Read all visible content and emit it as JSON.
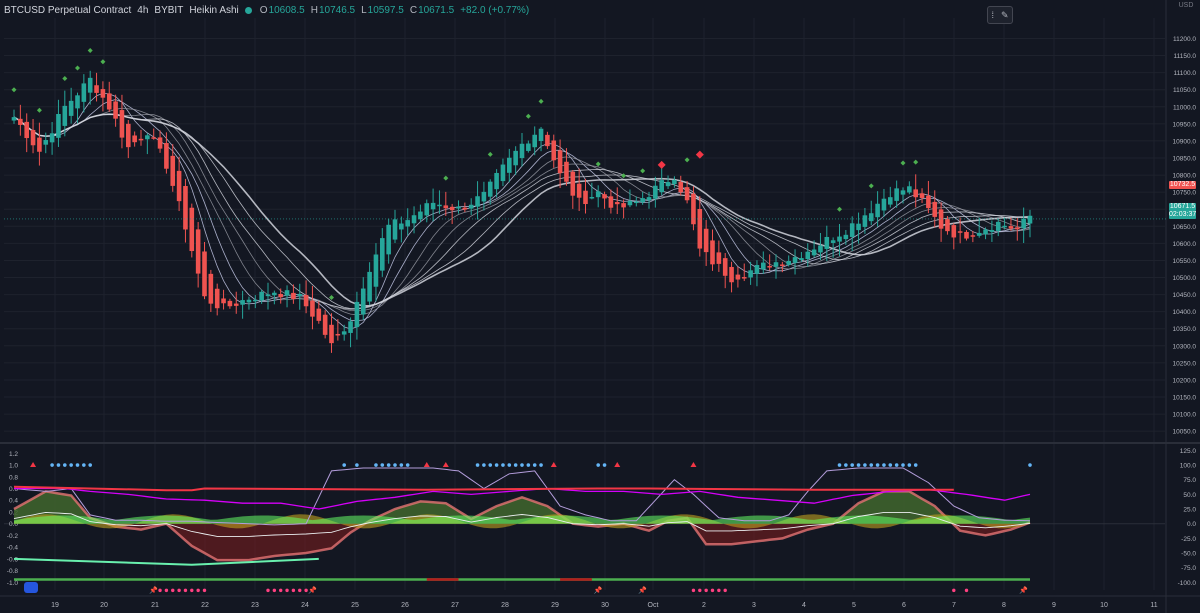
{
  "header": {
    "symbol": "BTCUSD Perpetual Contract",
    "interval": "4h",
    "exchange": "BYBIT",
    "chart_style": "Heikin Ashi",
    "open_label": "O",
    "open": "10608.5",
    "high_label": "H",
    "high": "10746.5",
    "low_label": "L",
    "low": "10597.5",
    "close_label": "C",
    "close": "10671.5",
    "change": "+82.0 (+0.77%)"
  },
  "toolbar": {
    "handle_icon": "drag-handle-icon",
    "settings_icon": "brush-icon"
  },
  "currency_label": "USD",
  "price_tags": {
    "high_tag": "10732.5",
    "last_price": "10671.5",
    "countdown": "02:03:37"
  },
  "colors": {
    "background": "#131722",
    "up": "#26a69a",
    "down": "#ef5350",
    "grid": "#1e222d",
    "ribbon": "#d1d4dc"
  },
  "chart_data": [
    {
      "type": "candlestick",
      "title": "",
      "y_ticks": [
        11200,
        11150,
        11100,
        11050,
        11000,
        10950,
        10900,
        10850,
        10800,
        10750,
        10700,
        10650,
        10600,
        10550,
        10500,
        10450,
        10400,
        10350,
        10300,
        10250,
        10200,
        10150,
        10100,
        10050
      ],
      "ylim": [
        10030,
        11260
      ],
      "x_labels": [
        "19",
        "20",
        "21",
        "22",
        "23",
        "24",
        "25",
        "26",
        "27",
        "28",
        "29",
        "30",
        "Oct",
        "2",
        "3",
        "4",
        "5",
        "6",
        "7",
        "8",
        "9",
        "10",
        "11"
      ],
      "anchors": [
        [
          0,
          10970
        ],
        [
          4,
          10870
        ],
        [
          8,
          11000
        ],
        [
          12,
          11080
        ],
        [
          15,
          11000
        ],
        [
          18,
          10880
        ],
        [
          21,
          10930
        ],
        [
          24,
          10830
        ],
        [
          27,
          10650
        ],
        [
          30,
          10440
        ],
        [
          33,
          10410
        ],
        [
          37,
          10440
        ],
        [
          41,
          10460
        ],
        [
          45,
          10440
        ],
        [
          48,
          10370
        ],
        [
          50,
          10300
        ],
        [
          53,
          10380
        ],
        [
          56,
          10530
        ],
        [
          59,
          10650
        ],
        [
          62,
          10670
        ],
        [
          66,
          10720
        ],
        [
          70,
          10700
        ],
        [
          74,
          10740
        ],
        [
          77,
          10820
        ],
        [
          80,
          10890
        ],
        [
          83,
          10940
        ],
        [
          86,
          10800
        ],
        [
          89,
          10720
        ],
        [
          92,
          10750
        ],
        [
          95,
          10700
        ],
        [
          98,
          10720
        ],
        [
          101,
          10760
        ],
        [
          104,
          10800
        ],
        [
          106,
          10720
        ],
        [
          108,
          10580
        ],
        [
          111,
          10530
        ],
        [
          113,
          10500
        ],
        [
          116,
          10520
        ],
        [
          119,
          10540
        ],
        [
          123,
          10560
        ],
        [
          127,
          10600
        ],
        [
          131,
          10640
        ],
        [
          135,
          10700
        ],
        [
          138,
          10750
        ],
        [
          141,
          10760
        ],
        [
          143,
          10720
        ],
        [
          146,
          10650
        ],
        [
          149,
          10620
        ],
        [
          152,
          10640
        ],
        [
          155,
          10660
        ],
        [
          158,
          10640
        ],
        [
          160,
          10680
        ]
      ],
      "bar_count": 161
    },
    {
      "type": "oscillator",
      "title": "",
      "y_ticks_left": [
        1.2,
        1.0,
        0.8,
        0.6,
        0.4,
        0.2,
        0.0,
        -0.2,
        -0.4,
        -0.6,
        -0.8,
        -1.0
      ],
      "y_ticks_right": [
        125.0,
        100.0,
        75.0,
        50.0,
        25.0,
        0.0,
        -25.0,
        -50.0,
        -75.0,
        -100.0
      ],
      "ylim": [
        -1.13,
        1.29
      ],
      "wave": [
        [
          0,
          0.25
        ],
        [
          5,
          0.55
        ],
        [
          9,
          0.48
        ],
        [
          12,
          0.1
        ],
        [
          16,
          -0.05
        ],
        [
          20,
          -0.1
        ],
        [
          24,
          0.0
        ],
        [
          28,
          -0.38
        ],
        [
          32,
          -0.62
        ],
        [
          37,
          -0.62
        ],
        [
          41,
          -0.55
        ],
        [
          46,
          -0.5
        ],
        [
          50,
          -0.42
        ],
        [
          53,
          -0.15
        ],
        [
          56,
          0.05
        ],
        [
          60,
          0.25
        ],
        [
          64,
          0.38
        ],
        [
          68,
          0.35
        ],
        [
          72,
          0.08
        ],
        [
          76,
          0.3
        ],
        [
          80,
          0.45
        ],
        [
          84,
          0.3
        ],
        [
          88,
          0.0
        ],
        [
          92,
          -0.05
        ],
        [
          96,
          0.0
        ],
        [
          100,
          -0.12
        ],
        [
          103,
          0.05
        ],
        [
          106,
          0.1
        ],
        [
          109,
          -0.35
        ],
        [
          113,
          -0.35
        ],
        [
          117,
          -0.3
        ],
        [
          121,
          -0.25
        ],
        [
          125,
          -0.1
        ],
        [
          129,
          0.0
        ],
        [
          133,
          0.35
        ],
        [
          137,
          0.55
        ],
        [
          141,
          0.55
        ],
        [
          145,
          0.3
        ],
        [
          149,
          -0.12
        ],
        [
          153,
          -0.2
        ],
        [
          157,
          -0.1
        ],
        [
          160,
          0.02
        ]
      ],
      "thin_line": [
        [
          0,
          0.6
        ],
        [
          5,
          0.55
        ],
        [
          9,
          0.6
        ],
        [
          12,
          0.15
        ],
        [
          16,
          0.06
        ],
        [
          20,
          0.06
        ],
        [
          24,
          0.04
        ],
        [
          28,
          0.04
        ],
        [
          32,
          0.02
        ],
        [
          37,
          0.0
        ],
        [
          41,
          -0.02
        ],
        [
          46,
          0.0
        ],
        [
          50,
          0.9
        ],
        [
          55,
          0.95
        ],
        [
          60,
          0.95
        ],
        [
          66,
          0.95
        ],
        [
          70,
          0.9
        ],
        [
          74,
          0.6
        ],
        [
          78,
          0.85
        ],
        [
          82,
          0.9
        ],
        [
          86,
          0.3
        ],
        [
          90,
          0.15
        ],
        [
          94,
          0.05
        ],
        [
          98,
          0.05
        ],
        [
          101,
          0.4
        ],
        [
          104,
          0.75
        ],
        [
          107,
          0.5
        ],
        [
          111,
          0.1
        ],
        [
          115,
          0.05
        ],
        [
          119,
          0.05
        ],
        [
          122,
          0.15
        ],
        [
          125,
          0.55
        ],
        [
          128,
          0.9
        ],
        [
          133,
          0.95
        ],
        [
          140,
          0.95
        ],
        [
          144,
          0.7
        ],
        [
          148,
          0.3
        ],
        [
          152,
          0.1
        ],
        [
          156,
          0.06
        ],
        [
          160,
          0.05
        ]
      ],
      "magenta_line": [
        [
          0,
          0.6
        ],
        [
          8,
          0.6
        ],
        [
          12,
          0.55
        ],
        [
          18,
          0.5
        ],
        [
          24,
          0.42
        ],
        [
          30,
          0.4
        ],
        [
          36,
          0.35
        ],
        [
          42,
          0.35
        ],
        [
          48,
          0.25
        ],
        [
          54,
          0.38
        ],
        [
          60,
          0.45
        ],
        [
          66,
          0.55
        ],
        [
          72,
          0.5
        ],
        [
          78,
          0.55
        ],
        [
          84,
          0.6
        ],
        [
          90,
          0.55
        ],
        [
          96,
          0.55
        ],
        [
          102,
          0.5
        ],
        [
          108,
          0.55
        ],
        [
          114,
          0.45
        ],
        [
          120,
          0.4
        ],
        [
          126,
          0.35
        ],
        [
          132,
          0.48
        ],
        [
          138,
          0.55
        ],
        [
          144,
          0.58
        ],
        [
          150,
          0.5
        ],
        [
          156,
          0.4
        ],
        [
          160,
          0.5
        ]
      ],
      "red_level": [
        [
          0,
          0.63
        ],
        [
          24,
          0.57
        ],
        [
          28,
          0.57
        ],
        [
          30,
          0.6
        ],
        [
          65,
          0.58
        ],
        [
          92,
          0.6
        ],
        [
          100,
          0.6
        ],
        [
          126,
          0.58
        ],
        [
          148,
          0.58
        ]
      ],
      "green_level": [
        [
          0,
          -0.6
        ],
        [
          28,
          -0.7
        ],
        [
          48,
          -0.6
        ]
      ],
      "top_dots_y": 1.0,
      "bottom_dots_y": -0.95
    }
  ]
}
